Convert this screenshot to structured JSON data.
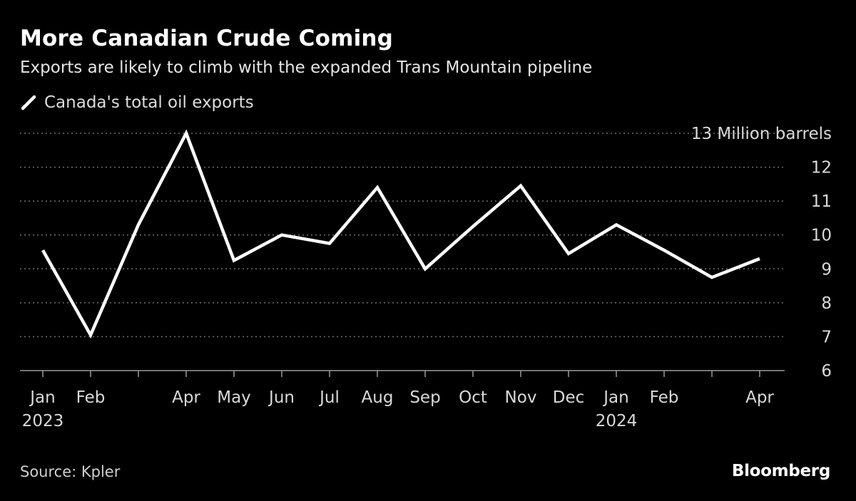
{
  "chart_data": {
    "type": "line",
    "title": "More Canadian Crude Coming",
    "subtitle": "Exports are likely to climb with the expanded Trans Mountain pipeline",
    "series": [
      {
        "name": "Canada's total oil exports",
        "color": "#ffffff",
        "x": [
          "2023-01",
          "2023-02",
          "2023-03",
          "2023-04",
          "2023-05",
          "2023-06",
          "2023-07",
          "2023-08",
          "2023-09",
          "2023-10",
          "2023-11",
          "2023-12",
          "2024-01",
          "2024-02",
          "2024-03",
          "2024-04"
        ],
        "values": [
          9.55,
          7.05,
          10.3,
          13.0,
          9.25,
          10.0,
          9.75,
          11.4,
          9.0,
          10.25,
          11.45,
          9.45,
          10.3,
          9.55,
          8.75,
          9.3
        ]
      }
    ],
    "ylim": [
      6,
      13
    ],
    "y_ticks": [
      "6",
      "7",
      "8",
      "9",
      "10",
      "11",
      "12",
      "13 Million barrels"
    ],
    "y_unit": "Million barrels",
    "x_ticks": [
      {
        "month": "Jan",
        "year": "2023"
      },
      {
        "month": "Feb",
        "year": ""
      },
      {
        "month": "",
        "year": ""
      },
      {
        "month": "Apr",
        "year": ""
      },
      {
        "month": "May",
        "year": ""
      },
      {
        "month": "Jun",
        "year": ""
      },
      {
        "month": "Jul",
        "year": ""
      },
      {
        "month": "Aug",
        "year": ""
      },
      {
        "month": "Sep",
        "year": ""
      },
      {
        "month": "Oct",
        "year": ""
      },
      {
        "month": "Nov",
        "year": ""
      },
      {
        "month": "Dec",
        "year": ""
      },
      {
        "month": "Jan",
        "year": "2024"
      },
      {
        "month": "Feb",
        "year": ""
      },
      {
        "month": "",
        "year": ""
      },
      {
        "month": "Apr",
        "year": ""
      }
    ],
    "grid": true,
    "legend_position": "top-left",
    "source": "Source: Kpler",
    "brand": "Bloomberg",
    "colors": {
      "background": "#000000",
      "gridline": "#6e6e6e",
      "axis": "#9a9a9a",
      "text": "#d9d9d9"
    }
  }
}
